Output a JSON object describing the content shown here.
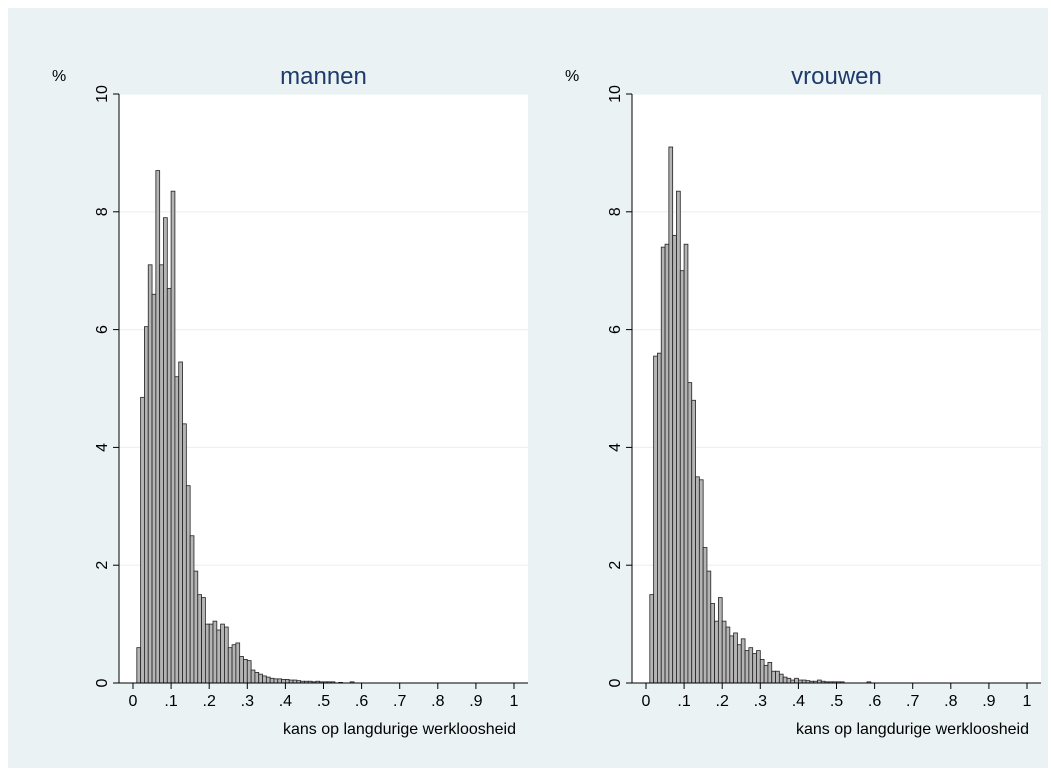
{
  "chart_data": [
    {
      "type": "bar",
      "title": "mannen",
      "ylabel": "%",
      "xlabel": "kans op langdurige werkloosheid",
      "xlim": [
        0,
        1
      ],
      "ylim": [
        0,
        10
      ],
      "xticks": [
        "0",
        ".1",
        ".2",
        ".3",
        ".4",
        ".5",
        ".6",
        ".7",
        ".8",
        ".9",
        "1"
      ],
      "yticks": [
        "0",
        "2",
        "4",
        "6",
        "8",
        "10"
      ],
      "bin_start": 0.01,
      "bin_width": 0.01,
      "values": [
        0.6,
        4.85,
        6.05,
        7.1,
        6.6,
        8.7,
        7.1,
        7.9,
        6.7,
        8.35,
        5.2,
        5.45,
        4.4,
        3.35,
        2.5,
        1.9,
        1.5,
        1.45,
        1.0,
        1.0,
        1.05,
        0.9,
        1.0,
        0.95,
        0.6,
        0.65,
        0.68,
        0.45,
        0.4,
        0.38,
        0.22,
        0.18,
        0.15,
        0.12,
        0.1,
        0.08,
        0.07,
        0.07,
        0.06,
        0.06,
        0.05,
        0.05,
        0.04,
        0.03,
        0.03,
        0.03,
        0.02,
        0.03,
        0.02,
        0.02,
        0.02,
        0.02,
        0.0,
        0.01,
        0.0,
        0.0,
        0.02,
        0.0
      ]
    },
    {
      "type": "bar",
      "title": "vrouwen",
      "ylabel": "%",
      "xlabel": "kans op langdurige werkloosheid",
      "xlim": [
        0,
        1
      ],
      "ylim": [
        0,
        10
      ],
      "xticks": [
        "0",
        ".1",
        ".2",
        ".3",
        ".4",
        ".5",
        ".6",
        ".7",
        ".8",
        ".9",
        "1"
      ],
      "yticks": [
        "0",
        "2",
        "4",
        "6",
        "8",
        "10"
      ],
      "bin_start": 0.01,
      "bin_width": 0.01,
      "values": [
        1.5,
        5.55,
        5.6,
        7.4,
        7.45,
        9.1,
        7.6,
        8.35,
        7.0,
        7.45,
        5.1,
        4.8,
        3.5,
        3.45,
        2.3,
        1.9,
        1.35,
        1.05,
        1.45,
        1.05,
        0.95,
        0.8,
        0.85,
        0.65,
        0.75,
        0.55,
        0.6,
        0.5,
        0.55,
        0.4,
        0.3,
        0.35,
        0.2,
        0.2,
        0.15,
        0.1,
        0.08,
        0.05,
        0.08,
        0.05,
        0.05,
        0.04,
        0.03,
        0.03,
        0.05,
        0.03,
        0.02,
        0.02,
        0.02,
        0.02,
        0.02,
        0.0,
        0.0,
        0.0,
        0.0,
        0.0,
        0.0,
        0.02
      ]
    }
  ],
  "colors": {
    "background": "#eaf2f3",
    "plot_background": "#ffffff",
    "grid": "#eaf2f3",
    "bar_fill": "#b4b4b4",
    "bar_stroke": "#222222",
    "title": "#1e3b6b",
    "axis_text": "#000000"
  }
}
